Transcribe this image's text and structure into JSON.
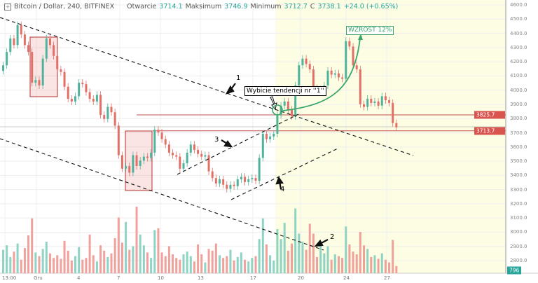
{
  "header": {
    "symbol": "Bitcoin / Dollar, 240, BITFINEX",
    "open_label": "Otwarcie",
    "open": "3714.1",
    "high_label": "Maksimum",
    "high": "3746.9",
    "low_label": "Minimum",
    "low": "3712.7",
    "close_label": "C",
    "close": "3738.1",
    "change": "+24.0 (+0.65%)"
  },
  "colors": {
    "up": "#4fb39c",
    "down": "#e27067",
    "highlight_bg": "#fdfde4",
    "level_line": "#c0504d",
    "annotation_green": "#3aa66b"
  },
  "annotations": {
    "n1": "1",
    "n2": "2",
    "n3": "3",
    "n4": "4",
    "breakout": "Wybicie tendencji nr ''1''",
    "growth": "WZROST 12%"
  },
  "price_labels": {
    "level_upper": "3825.7",
    "level_lower": "3713.7",
    "volume": "796"
  },
  "chart_data": {
    "type": "candlestick",
    "title": "Bitcoin / Dollar, 240, BITFINEX",
    "ylim": [
      2800,
      4600
    ],
    "yticks": [
      "4600.0",
      "4500.0",
      "4400.0",
      "4300.0",
      "4200.0",
      "4100.0",
      "4000.0",
      "3900.0",
      "3800.0",
      "3700.0",
      "3600.0",
      "3500.0",
      "3400.0",
      "3300.0",
      "3200.0",
      "3100.0",
      "3000.0",
      "2900.0",
      "2800.0"
    ],
    "xticks": [
      "13:00",
      "Gru",
      "4",
      "7",
      "10",
      "13",
      "17",
      "20",
      "24",
      "27"
    ],
    "grid": true,
    "horizontal_levels": [
      3825.7,
      3713.7
    ],
    "close": [
      4175,
      4269,
      4364,
      4317,
      4458,
      4392,
      4317,
      4269,
      4052,
      4071,
      4033,
      4222,
      4364,
      4317,
      4241,
      4146,
      4128,
      4024,
      3939,
      3920,
      3957,
      4052,
      4042,
      3986,
      3939,
      3920,
      3967,
      3825,
      3797,
      3882,
      3844,
      3750,
      3542,
      3447,
      3466,
      3419,
      3542,
      3466,
      3504,
      3532,
      3523,
      3560,
      3721,
      3702,
      3655,
      3617,
      3560,
      3542,
      3532,
      3447,
      3485,
      3560,
      3617,
      3579,
      3551,
      3532,
      3542,
      3428,
      3381,
      3343,
      3372,
      3334,
      3305,
      3334,
      3324,
      3372,
      3390,
      3353,
      3372,
      3381,
      3362,
      3523,
      3693,
      3655,
      3674,
      3693,
      3825,
      3891,
      3920,
      3863,
      3816,
      4033,
      4175,
      4222,
      4184,
      4146,
      4014,
      3986,
      4005,
      4033,
      4137,
      4109,
      4118,
      4090,
      4080,
      4345,
      4307,
      4175,
      4146,
      3901,
      3882,
      3939,
      3910,
      3920,
      3891,
      3957,
      3929,
      3910,
      3768,
      3738
    ],
    "volume": [
      2600,
      3100,
      1800,
      2400,
      3300,
      1500,
      2800,
      4200,
      6100,
      2300,
      1900,
      2700,
      3500,
      2200,
      1700,
      2000,
      1600,
      3600,
      2500,
      1400,
      1900,
      2900,
      1500,
      1700,
      4300,
      2000,
      1300,
      3100,
      2500,
      1800,
      2200,
      3900,
      6200,
      3400,
      5700,
      2600,
      3000,
      7400,
      4300,
      3100,
      2300,
      1700,
      4800,
      5000,
      2300,
      1900,
      3000,
      2100,
      1700,
      1500,
      2100,
      2400,
      1900,
      1300,
      3200,
      2100,
      1200,
      2700,
      2500,
      3300,
      2000,
      1700,
      1900,
      2600,
      1400,
      1800,
      2300,
      1500,
      1300,
      1700,
      1900,
      3800,
      6100,
      3200,
      2000,
      1400,
      4900,
      3800,
      5600,
      2500,
      3300,
      7200,
      4400,
      3500,
      2600,
      5500,
      4400,
      1800,
      3100,
      2200,
      3000,
      1500,
      2100,
      1900,
      1700,
      5200,
      3200,
      2400,
      2100,
      4600,
      3100,
      2700,
      1800,
      2000,
      1600,
      2200,
      1500,
      1200,
      3700,
      796
    ]
  }
}
